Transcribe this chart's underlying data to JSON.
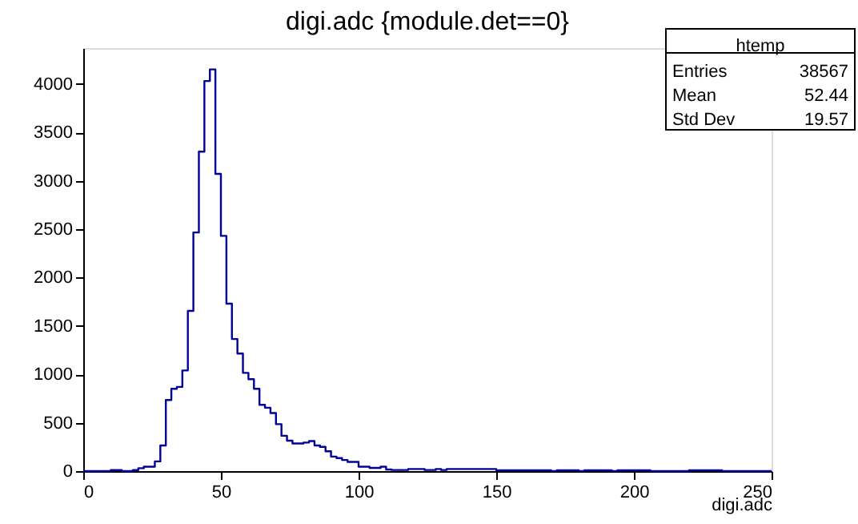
{
  "chart_data": {
    "type": "histogram",
    "title": "digi.adc {module.det==0}",
    "xlabel": "digi.adc",
    "annotations": [
      "htemp",
      "Entries",
      "38567",
      "Mean",
      "52.44",
      "Std Dev",
      "19.57"
    ],
    "color": "#000099",
    "bins": [
      0,
      2,
      4,
      6,
      8,
      10,
      12,
      14,
      16,
      18,
      20,
      22,
      24,
      26,
      28,
      30,
      32,
      34,
      36,
      38,
      40,
      42,
      44,
      46,
      48,
      50,
      52,
      54,
      56,
      58,
      60,
      62,
      64,
      66,
      68,
      70,
      72,
      74,
      76,
      78,
      80,
      82,
      84,
      86,
      88,
      90,
      92,
      94,
      96,
      98,
      100,
      102,
      104,
      106,
      108,
      110,
      112,
      114,
      116,
      118,
      120,
      122,
      124,
      126,
      128,
      130,
      132,
      134,
      136,
      138,
      140,
      142,
      144,
      146,
      148,
      150,
      152,
      154,
      156,
      158,
      160,
      162,
      164,
      166,
      168,
      170,
      172,
      174,
      176,
      178,
      180,
      182,
      184,
      186,
      188,
      190,
      192,
      194,
      196,
      198,
      200,
      202,
      204,
      206,
      208,
      210,
      212,
      214,
      216,
      218,
      220,
      222,
      224,
      226,
      228,
      230,
      232,
      234,
      236,
      238,
      240,
      242,
      244,
      246,
      248,
      250
    ],
    "values": [
      0,
      0,
      0,
      0,
      0,
      10,
      10,
      0,
      0,
      10,
      30,
      45,
      45,
      100,
      265,
      735,
      850,
      870,
      1040,
      1655,
      2465,
      3300,
      4030,
      4150,
      3070,
      2430,
      1730,
      1365,
      1215,
      1015,
      950,
      850,
      685,
      655,
      600,
      485,
      365,
      315,
      285,
      285,
      295,
      310,
      265,
      250,
      205,
      150,
      135,
      115,
      95,
      95,
      45,
      45,
      33,
      33,
      45,
      17,
      11,
      11,
      11,
      22,
      22,
      22,
      11,
      11,
      22,
      11,
      22,
      22,
      22,
      22,
      22,
      22,
      22,
      22,
      22,
      8,
      8,
      8,
      8,
      8,
      8,
      8,
      8,
      8,
      8,
      0,
      8,
      8,
      8,
      8,
      0,
      8,
      8,
      8,
      8,
      8,
      0,
      8,
      8,
      8,
      8,
      8,
      8,
      0,
      0,
      0,
      0,
      0,
      0,
      0,
      8,
      8,
      8,
      8,
      8,
      8,
      0,
      0,
      0,
      0,
      0,
      0,
      0,
      0,
      0
    ],
    "xlim": [
      0,
      250
    ],
    "ylim": [
      0,
      4370
    ],
    "xticks": [
      0,
      50,
      100,
      150,
      200,
      250
    ],
    "yticks": [
      0,
      500,
      1000,
      1500,
      2000,
      2500,
      3000,
      3500,
      4000
    ],
    "grid": false
  }
}
